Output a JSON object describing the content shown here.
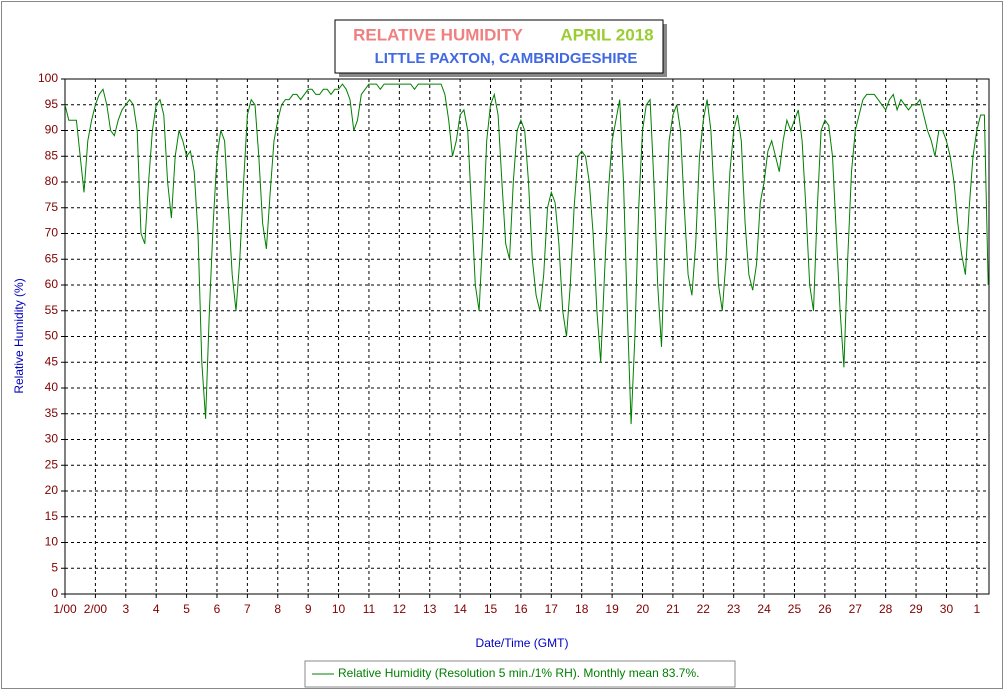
{
  "chart_data": {
    "type": "line",
    "title": "RELATIVE HUMIDITY",
    "title_right": "APRIL 2018",
    "subtitle": "LITTLE PAXTON, CAMBRIDGESHIRE",
    "xlabel": "Date/Time (GMT)",
    "ylabel": "Relative Humidity (%)",
    "x": [
      1,
      1.125,
      1.25,
      1.375,
      1.5,
      1.625,
      1.75,
      1.875,
      2,
      2.125,
      2.25,
      2.375,
      2.5,
      2.625,
      2.75,
      2.875,
      3,
      3.125,
      3.25,
      3.375,
      3.5,
      3.625,
      3.75,
      3.875,
      4,
      4.125,
      4.25,
      4.375,
      4.5,
      4.625,
      4.75,
      4.875,
      5,
      5.125,
      5.25,
      5.375,
      5.5,
      5.625,
      5.75,
      5.875,
      6,
      6.125,
      6.25,
      6.375,
      6.5,
      6.625,
      6.75,
      6.875,
      7,
      7.125,
      7.25,
      7.375,
      7.5,
      7.625,
      7.75,
      7.875,
      8,
      8.125,
      8.25,
      8.375,
      8.5,
      8.625,
      8.75,
      8.875,
      9,
      9.125,
      9.25,
      9.375,
      9.5,
      9.625,
      9.75,
      9.875,
      10,
      10.125,
      10.25,
      10.375,
      10.5,
      10.625,
      10.75,
      10.875,
      11,
      11.125,
      11.25,
      11.375,
      11.5,
      11.625,
      11.75,
      11.875,
      12,
      12.125,
      12.25,
      12.375,
      12.5,
      12.625,
      12.75,
      12.875,
      13,
      13.125,
      13.25,
      13.375,
      13.5,
      13.625,
      13.75,
      13.875,
      14,
      14.125,
      14.25,
      14.375,
      14.5,
      14.625,
      14.75,
      14.875,
      15,
      15.125,
      15.25,
      15.375,
      15.5,
      15.625,
      15.75,
      15.875,
      16,
      16.125,
      16.25,
      16.375,
      16.5,
      16.625,
      16.75,
      16.875,
      17,
      17.125,
      17.25,
      17.375,
      17.5,
      17.625,
      17.75,
      17.875,
      18,
      18.125,
      18.25,
      18.375,
      18.5,
      18.625,
      18.75,
      18.875,
      19,
      19.125,
      19.25,
      19.375,
      19.5,
      19.625,
      19.75,
      19.875,
      20,
      20.125,
      20.25,
      20.375,
      20.5,
      20.625,
      20.75,
      20.875,
      21,
      21.125,
      21.25,
      21.375,
      21.5,
      21.625,
      21.75,
      21.875,
      22,
      22.125,
      22.25,
      22.375,
      22.5,
      22.625,
      22.75,
      22.875,
      23,
      23.125,
      23.25,
      23.375,
      23.5,
      23.625,
      23.75,
      23.875,
      24,
      24.125,
      24.25,
      24.375,
      24.5,
      24.625,
      24.75,
      24.875,
      25,
      25.125,
      25.25,
      25.375,
      25.5,
      25.625,
      25.75,
      25.875,
      26,
      26.125,
      26.25,
      26.375,
      26.5,
      26.625,
      26.75,
      26.875,
      27,
      27.125,
      27.25,
      27.375,
      27.5,
      27.625,
      27.75,
      27.875,
      28,
      28.125,
      28.25,
      28.375,
      28.5,
      28.625,
      28.75,
      28.875,
      29,
      29.125,
      29.25,
      29.375,
      29.5,
      29.625,
      29.75,
      29.875,
      30,
      30.125,
      30.25,
      30.375,
      30.5,
      30.625,
      30.75,
      30.875,
      31,
      31.125,
      31.25,
      31.375
    ],
    "series": [
      {
        "name": "Relative Humidity (Resolution 5 min./1% RH). Monthly mean 83.7%.",
        "color": "#008000",
        "values": [
          95,
          92,
          92,
          92,
          85,
          78,
          88,
          92,
          95,
          97,
          98,
          95,
          90,
          89,
          92,
          94,
          95,
          96,
          95,
          90,
          70,
          68,
          80,
          90,
          95,
          96,
          93,
          80,
          73,
          85,
          90,
          88,
          85,
          86,
          82,
          70,
          45,
          34,
          55,
          72,
          85,
          90,
          88,
          75,
          62,
          55,
          65,
          80,
          93,
          96,
          95,
          85,
          72,
          67,
          78,
          88,
          92,
          95,
          96,
          96,
          97,
          97,
          96,
          97,
          98,
          98,
          97,
          97,
          98,
          98,
          97,
          98,
          98,
          99,
          98,
          96,
          90,
          92,
          97,
          98,
          99,
          99,
          99,
          98,
          99,
          99,
          99,
          99,
          99,
          99,
          99,
          99,
          98,
          99,
          99,
          99,
          99,
          99,
          99,
          99,
          97,
          92,
          85,
          88,
          93,
          94,
          90,
          75,
          60,
          55,
          70,
          88,
          95,
          97,
          93,
          80,
          68,
          65,
          80,
          90,
          92,
          90,
          80,
          65,
          58,
          55,
          62,
          75,
          78,
          76,
          68,
          55,
          50,
          60,
          75,
          85,
          86,
          85,
          80,
          70,
          55,
          45,
          62,
          78,
          88,
          92,
          96,
          80,
          55,
          33,
          50,
          75,
          90,
          95,
          96,
          80,
          60,
          48,
          70,
          88,
          93,
          95,
          90,
          75,
          62,
          58,
          68,
          85,
          92,
          96,
          90,
          75,
          60,
          55,
          65,
          82,
          90,
          93,
          88,
          72,
          62,
          59,
          64,
          76,
          80,
          86,
          88,
          85,
          82,
          88,
          92,
          90,
          92,
          94,
          88,
          75,
          60,
          55,
          75,
          90,
          92,
          91,
          85,
          70,
          55,
          44,
          65,
          82,
          90,
          93,
          96,
          97,
          97,
          97,
          96,
          95,
          94,
          96,
          97,
          94,
          96,
          95,
          94,
          95,
          95,
          96,
          93,
          90,
          88,
          85,
          90,
          90,
          88,
          85,
          80,
          72,
          66,
          62,
          75,
          85,
          90,
          93,
          93,
          60
        ]
      }
    ],
    "xlim": [
      1,
      31.4
    ],
    "xticks": [
      {
        "value": 1,
        "label": "1/00"
      },
      {
        "value": 2,
        "label": "2/00"
      },
      3,
      4,
      5,
      6,
      7,
      8,
      9,
      10,
      11,
      12,
      13,
      14,
      15,
      16,
      17,
      18,
      19,
      20,
      21,
      22,
      23,
      24,
      25,
      26,
      27,
      28,
      29,
      30,
      {
        "value": 31,
        "label": "1"
      }
    ],
    "ylim": [
      0,
      100
    ],
    "yticks": [
      0,
      5,
      10,
      15,
      20,
      25,
      30,
      35,
      40,
      45,
      50,
      55,
      60,
      65,
      70,
      75,
      80,
      85,
      90,
      95,
      100
    ],
    "grid": true
  }
}
